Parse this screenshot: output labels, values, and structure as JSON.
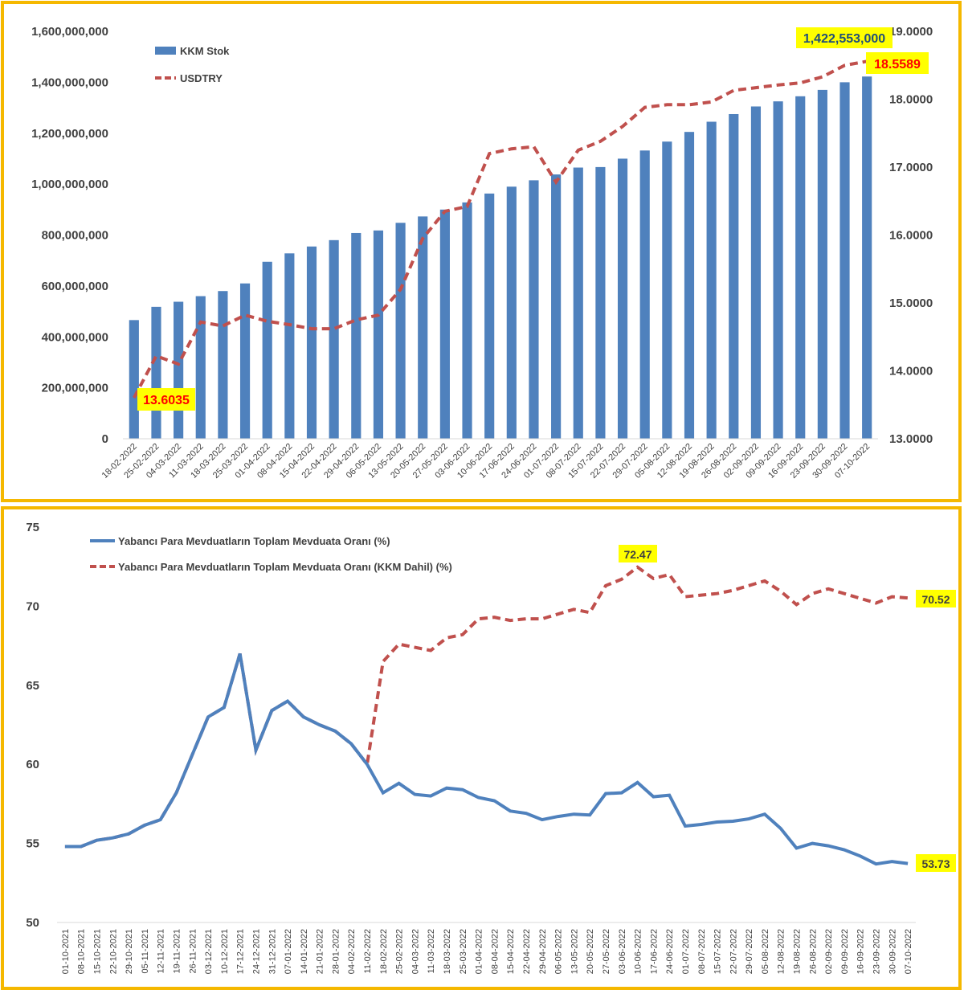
{
  "charts": {
    "top": {
      "legend": {
        "bar_label": "KKM Stok",
        "line_label": "USDTRY"
      },
      "left_ticks": [
        "0",
        "200,000,000",
        "400,000,000",
        "600,000,000",
        "800,000,000",
        "1,000,000,000",
        "1,200,000,000",
        "1,400,000,000",
        "1,600,000,000"
      ],
      "right_ticks": [
        "13.0000",
        "14.0000",
        "15.0000",
        "16.0000",
        "17.0000",
        "18.0000",
        "19.0000"
      ],
      "annotations": {
        "bar_last": "1,422,553,000",
        "line_first": "13.6035",
        "line_last": "18.5589"
      }
    },
    "bottom": {
      "legend": {
        "series1": "Yabancı Para Mevduatların Toplam Mevduata Oranı (%)",
        "series2": "Yabancı Para Mevduatların Toplam Mevduata Oranı (KKM Dahil) (%)"
      },
      "y_ticks": [
        "50",
        "55",
        "60",
        "65",
        "70",
        "75"
      ],
      "annotations": {
        "series2_max": "72.47",
        "series2_last": "70.52",
        "series1_last": "53.73"
      }
    }
  },
  "colors": {
    "bar": "#4f81bd",
    "line_red": "#c0504d",
    "line_blue": "#4f81bd",
    "highlight": "#ffff00",
    "frame": "#f5b800",
    "label_red": "#ff0000"
  },
  "chart_data": [
    {
      "type": "bar",
      "categories": [
        "18-02-2022",
        "25-02-2022",
        "04-03-2022",
        "11-03-2022",
        "18-03-2022",
        "25-03-2022",
        "01-04-2022",
        "08-04-2022",
        "15-04-2022",
        "22-04-2022",
        "29-04-2022",
        "06-05-2022",
        "13-05-2022",
        "20-05-2022",
        "27-05-2022",
        "03-06-2022",
        "10-06-2022",
        "17-06-2022",
        "24-06-2022",
        "01-07-2022",
        "08-07-2022",
        "15-07-2022",
        "22-07-2022",
        "29-07-2022",
        "05-08-2022",
        "12-08-2022",
        "19-08-2022",
        "26-08-2022",
        "02-09-2022",
        "09-09-2022",
        "16-09-2022",
        "23-09-2022",
        "30-09-2022",
        "07-10-2022"
      ],
      "series": [
        {
          "name": "KKM Stok",
          "type": "bar",
          "axis": "left",
          "values": [
            466000000,
            518000000,
            538000000,
            560000000,
            580000000,
            610000000,
            695000000,
            728000000,
            755000000,
            780000000,
            808000000,
            818000000,
            848000000,
            873000000,
            900000000,
            928000000,
            963000000,
            990000000,
            1015000000,
            1038000000,
            1065000000,
            1067000000,
            1100000000,
            1132000000,
            1167000000,
            1205000000,
            1245000000,
            1275000000,
            1305000000,
            1325000000,
            1345000000,
            1370000000,
            1400000000,
            1422553000
          ]
        },
        {
          "name": "USDTRY",
          "type": "line",
          "axis": "right",
          "values": [
            13.6035,
            14.22,
            14.1,
            14.72,
            14.66,
            14.82,
            14.73,
            14.68,
            14.62,
            14.62,
            14.75,
            14.82,
            15.2,
            15.95,
            16.35,
            16.42,
            17.2,
            17.27,
            17.3,
            16.78,
            17.25,
            17.38,
            17.6,
            17.88,
            17.92,
            17.92,
            17.96,
            18.13,
            18.17,
            18.21,
            18.24,
            18.33,
            18.5,
            18.5589
          ]
        }
      ],
      "ylim_left": [
        0,
        1600000000
      ],
      "ylim_right": [
        13,
        19
      ],
      "legend": "top-left",
      "grid": false
    },
    {
      "type": "line",
      "categories": [
        "01-10-2021",
        "08-10-2021",
        "15-10-2021",
        "22-10-2021",
        "29-10-2021",
        "05-11-2021",
        "12-11-2021",
        "19-11-2021",
        "26-11-2021",
        "03-12-2021",
        "10-12-2021",
        "17-12-2021",
        "24-12-2021",
        "31-12-2021",
        "07-01-2022",
        "14-01-2022",
        "21-01-2022",
        "28-01-2022",
        "04-02-2022",
        "11-02-2022",
        "18-02-2022",
        "25-02-2022",
        "04-03-2022",
        "11-03-2022",
        "18-03-2022",
        "25-03-2022",
        "01-04-2022",
        "08-04-2022",
        "15-04-2022",
        "22-04-2022",
        "29-04-2022",
        "06-05-2022",
        "13-05-2022",
        "20-05-2022",
        "27-05-2022",
        "03-06-2022",
        "10-06-2022",
        "17-06-2022",
        "24-06-2022",
        "01-07-2022",
        "08-07-2022",
        "15-07-2022",
        "22-07-2022",
        "29-07-2022",
        "05-08-2022",
        "12-08-2022",
        "19-08-2022",
        "26-08-2022",
        "02-09-2022",
        "09-09-2022",
        "16-09-2022",
        "23-09-2022",
        "30-09-2022",
        "07-10-2022"
      ],
      "series": [
        {
          "name": "Yabancı Para Mevduatların Toplam Mevduata Oranı (%)",
          "values": [
            54.8,
            54.8,
            55.2,
            55.35,
            55.6,
            56.15,
            56.5,
            58.2,
            60.6,
            63.0,
            63.6,
            67.0,
            60.9,
            63.4,
            64.0,
            63.0,
            62.5,
            62.1,
            61.3,
            60.0,
            58.2,
            58.8,
            58.1,
            58.0,
            58.5,
            58.4,
            57.9,
            57.7,
            57.05,
            56.9,
            56.5,
            56.7,
            56.85,
            56.8,
            58.15,
            58.2,
            58.85,
            57.95,
            58.05,
            56.1,
            56.2,
            56.35,
            56.4,
            56.55,
            56.85,
            55.95,
            54.7,
            55.0,
            54.85,
            54.6,
            54.2,
            53.7,
            53.85,
            53.73
          ]
        },
        {
          "name": "Yabancı Para Mevduatların Toplam Mevduata Oranı (KKM Dahil) (%)",
          "values": [
            54.8,
            54.8,
            55.2,
            55.35,
            55.6,
            56.15,
            56.5,
            58.2,
            60.6,
            63.0,
            63.6,
            67.0,
            60.9,
            63.4,
            64.0,
            63.0,
            62.5,
            62.1,
            61.3,
            60.0,
            66.5,
            67.6,
            67.4,
            67.2,
            68.0,
            68.2,
            69.2,
            69.3,
            69.1,
            69.2,
            69.2,
            69.5,
            69.8,
            69.6,
            71.3,
            71.7,
            72.47,
            71.75,
            72.0,
            70.6,
            70.7,
            70.8,
            71.0,
            71.3,
            71.6,
            70.95,
            70.1,
            70.8,
            71.1,
            70.8,
            70.5,
            70.2,
            70.6,
            70.52
          ]
        }
      ],
      "ylim": [
        50,
        75
      ],
      "legend": "top-left",
      "grid": false
    }
  ]
}
